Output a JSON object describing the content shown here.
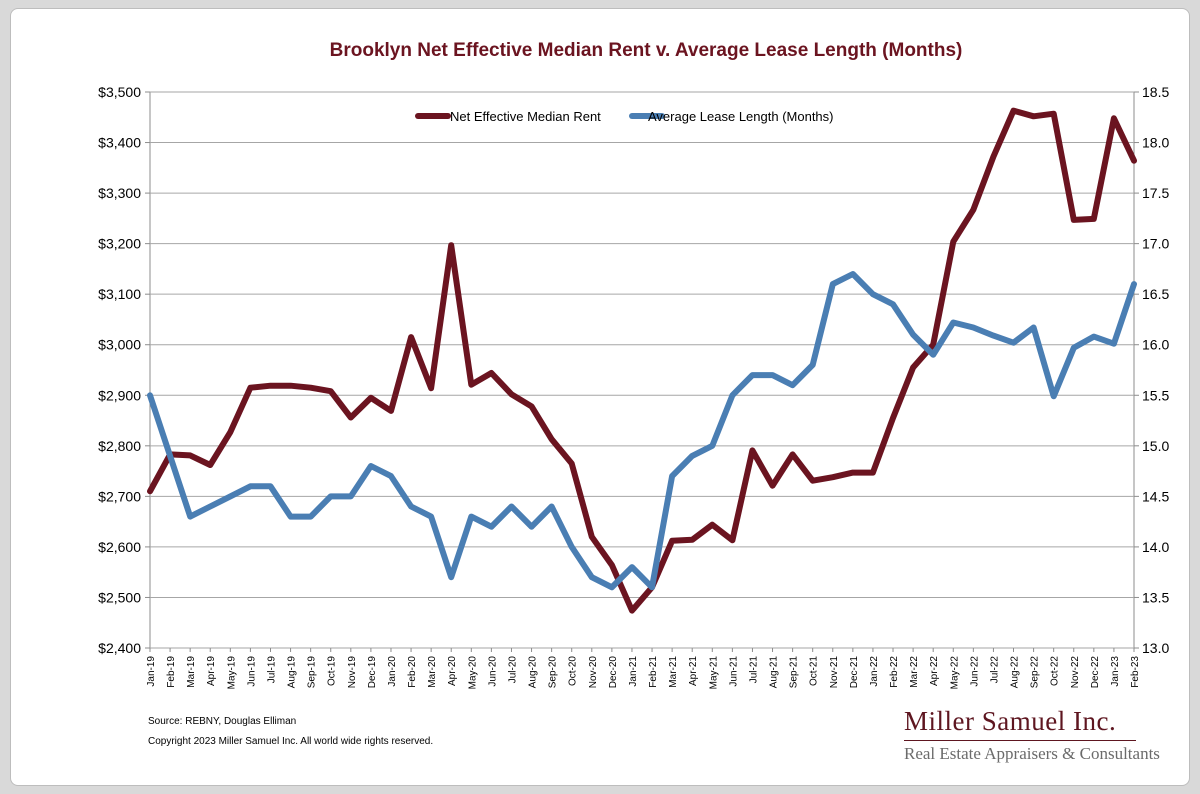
{
  "chart_data": {
    "type": "line",
    "title": "Brooklyn Net Effective Median Rent v. Average Lease Length (Months)",
    "categories": [
      "Jan-19",
      "Feb-19",
      "Mar-19",
      "Apr-19",
      "May-19",
      "Jun-19",
      "Jul-19",
      "Aug-19",
      "Sep-19",
      "Oct-19",
      "Nov-19",
      "Dec-19",
      "Jan-20",
      "Feb-20",
      "Mar-20",
      "Apr-20",
      "May-20",
      "Jun-20",
      "Jul-20",
      "Aug-20",
      "Sep-20",
      "Oct-20",
      "Nov-20",
      "Dec-20",
      "Jan-21",
      "Feb-21",
      "Mar-21",
      "Apr-21",
      "May-21",
      "Jun-21",
      "Jul-21",
      "Aug-21",
      "Sep-21",
      "Oct-21",
      "Nov-21",
      "Dec-21",
      "Jan-22",
      "Feb-22",
      "Mar-22",
      "Apr-22",
      "May-22",
      "Jun-22",
      "Jul-22",
      "Aug-22",
      "Sep-22",
      "Oct-22",
      "Nov-22",
      "Dec-22",
      "Jan-23",
      "Feb-23"
    ],
    "left_axis": {
      "min": 2400,
      "max": 3500,
      "step": 100,
      "tick_labels": [
        "$2,400",
        "$2,500",
        "$2,600",
        "$2,700",
        "$2,800",
        "$2,900",
        "$3,000",
        "$3,100",
        "$3,200",
        "$3,300",
        "$3,400",
        "$3,500"
      ]
    },
    "right_axis": {
      "min": 13.0,
      "max": 18.5,
      "step": 0.5,
      "tick_labels": [
        "13.0",
        "13.5",
        "14.0",
        "14.5",
        "15.0",
        "15.5",
        "16.0",
        "16.5",
        "17.0",
        "17.5",
        "18.0",
        "18.5"
      ]
    },
    "grid": true,
    "legend_position": "top",
    "series": [
      {
        "name": "Net Effective Median Rent",
        "axis": "left",
        "color": "#6b1420",
        "values": [
          2710,
          2783,
          2781,
          2762,
          2827,
          2915,
          2919,
          2919,
          2915,
          2908,
          2856,
          2895,
          2869,
          3015,
          2914,
          3197,
          2921,
          2944,
          2902,
          2878,
          2813,
          2765,
          2620,
          2564,
          2474,
          2520,
          2612,
          2614,
          2644,
          2613,
          2791,
          2721,
          2783,
          2731,
          2738,
          2747,
          2747,
          2855,
          2955,
          3000,
          3204,
          3267,
          3372,
          3463,
          3452,
          3457,
          3247,
          3249,
          3448,
          3364
        ]
      },
      {
        "name": "Average Lease Length (Months)",
        "axis": "right",
        "color": "#4a7eb3",
        "values": [
          15.5,
          14.9,
          14.3,
          14.4,
          14.5,
          14.6,
          14.6,
          14.3,
          14.3,
          14.5,
          14.5,
          14.8,
          14.7,
          14.4,
          14.3,
          13.7,
          14.3,
          14.2,
          14.4,
          14.2,
          14.4,
          14.0,
          13.7,
          13.6,
          13.8,
          13.6,
          14.7,
          14.9,
          15.0,
          15.5,
          15.7,
          15.7,
          15.6,
          15.8,
          16.6,
          16.7,
          16.5,
          16.4,
          16.1,
          15.9,
          16.22,
          16.17,
          16.09,
          16.02,
          16.17,
          15.49,
          15.97,
          16.08,
          16.01,
          16.6
        ]
      }
    ]
  },
  "footer": {
    "source": "Source: REBNY, Douglas Elliman",
    "copyright": "Copyright 2023 Miller Samuel Inc.  All world wide rights reserved."
  },
  "brand": {
    "name": "Miller Samuel Inc.",
    "tagline": "Real Estate Appraisers & Consultants"
  }
}
